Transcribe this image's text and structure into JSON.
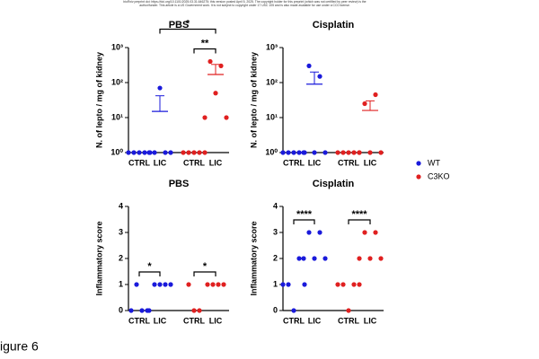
{
  "preprint_notice": "bioRxiv preprint doi: https://doi.org/10.1101/2025.03.31.646275; this version posted April 5, 2025. The copyright holder for this preprint (which was not certified by peer review) is the author/funder. This article is a US Government work. It is not subject to copyright under 17 USC 105 and is also made available for use under a CC0 license.",
  "figure_label": "igure 6",
  "chart_data": [
    {
      "type": "dot",
      "title": "PBS",
      "ylabel": "N. of lepto / mg of kidney",
      "log": true,
      "ylim": [
        1,
        1000
      ],
      "yticks": [
        {
          "value": 1,
          "label": "10⁰"
        },
        {
          "value": 10,
          "label": "10¹"
        },
        {
          "value": 100,
          "label": "10²"
        },
        {
          "value": 1000,
          "label": "10³"
        }
      ],
      "categories": [
        "CTRL",
        "LIC",
        "CTRL",
        "LIC"
      ],
      "series": [
        {
          "name": "WT",
          "color": "#1a1adb",
          "values": [
            [
              1,
              1,
              1,
              1,
              1
            ],
            [
              1,
              1,
              70,
              1,
              1
            ],
            null,
            null
          ],
          "means": [
            null,
            15,
            null,
            null
          ],
          "errors": [
            null,
            27,
            null,
            null
          ]
        },
        {
          "name": "C3KO",
          "color": "#e02020",
          "values": [
            null,
            null,
            [
              1,
              1,
              1,
              1,
              1
            ],
            [
              10,
              400,
              50,
              300,
              10
            ]
          ],
          "means": [
            null,
            null,
            null,
            170
          ],
          "errors": [
            null,
            null,
            null,
            160
          ]
        }
      ],
      "annotations": [
        {
          "text": "**",
          "between": [
            2,
            3
          ]
        },
        {
          "text": "*",
          "between": [
            1,
            3
          ]
        }
      ]
    },
    {
      "type": "dot",
      "title": "Cisplatin",
      "ylabel": "N. of lepto / mg of kidney",
      "log": true,
      "ylim": [
        1,
        1000
      ],
      "yticks": [
        {
          "value": 1,
          "label": "10⁰"
        },
        {
          "value": 10,
          "label": "10¹"
        },
        {
          "value": 100,
          "label": "10²"
        },
        {
          "value": 1000,
          "label": "10³"
        }
      ],
      "categories": [
        "CTRL",
        "LIC",
        "CTRL",
        "LIC"
      ],
      "series": [
        {
          "name": "WT",
          "color": "#1a1adb",
          "values": [
            [
              1,
              1,
              1,
              1,
              1
            ],
            [
              1,
              300,
              1,
              150,
              1
            ],
            null,
            null
          ],
          "means": [
            null,
            90,
            null,
            null
          ],
          "errors": [
            null,
            110,
            null,
            null
          ]
        },
        {
          "name": "C3KO",
          "color": "#e02020",
          "values": [
            null,
            null,
            [
              1,
              1,
              1,
              1,
              1
            ],
            [
              1,
              25,
              1,
              45,
              1
            ]
          ],
          "means": [
            null,
            null,
            null,
            16
          ],
          "errors": [
            null,
            null,
            null,
            14
          ]
        }
      ],
      "annotations": []
    },
    {
      "type": "dot",
      "title": "PBS",
      "ylabel": "Inflammatory score",
      "log": false,
      "ylim": [
        0,
        4
      ],
      "yticks": [
        0,
        1,
        2,
        3,
        4
      ],
      "categories": [
        "CTRL",
        "LIC",
        "CTRL",
        "LIC"
      ],
      "series": [
        {
          "name": "WT",
          "color": "#1a1adb",
          "values": [
            [
              0,
              1,
              0,
              0
            ],
            [
              0,
              1,
              1,
              1,
              1
            ],
            null,
            null
          ]
        },
        {
          "name": "C3KO",
          "color": "#e02020",
          "values": [
            null,
            null,
            [
              1,
              0,
              0
            ],
            [
              1,
              1,
              1,
              1
            ]
          ]
        }
      ],
      "annotations": [
        {
          "text": "*",
          "between": [
            0,
            1
          ]
        },
        {
          "text": "*",
          "between": [
            2,
            3
          ]
        }
      ]
    },
    {
      "type": "dot",
      "title": "Cisplatin",
      "ylabel": "Inflammatory score",
      "log": false,
      "ylim": [
        0,
        4
      ],
      "yticks": [
        0,
        1,
        2,
        3,
        4
      ],
      "categories": [
        "CTRL",
        "LIC",
        "CTRL",
        "LIC"
      ],
      "series": [
        {
          "name": "WT",
          "color": "#1a1adb",
          "values": [
            [
              1,
              1,
              0,
              2,
              1
            ],
            [
              2,
              3,
              2,
              3,
              2
            ],
            null,
            null
          ]
        },
        {
          "name": "C3KO",
          "color": "#e02020",
          "values": [
            null,
            null,
            [
              1,
              1,
              0,
              1,
              1
            ],
            [
              2,
              3,
              2,
              3,
              2
            ]
          ]
        }
      ],
      "annotations": [
        {
          "text": "****",
          "between": [
            0,
            1
          ]
        },
        {
          "text": "****",
          "between": [
            2,
            3
          ]
        }
      ]
    }
  ]
}
